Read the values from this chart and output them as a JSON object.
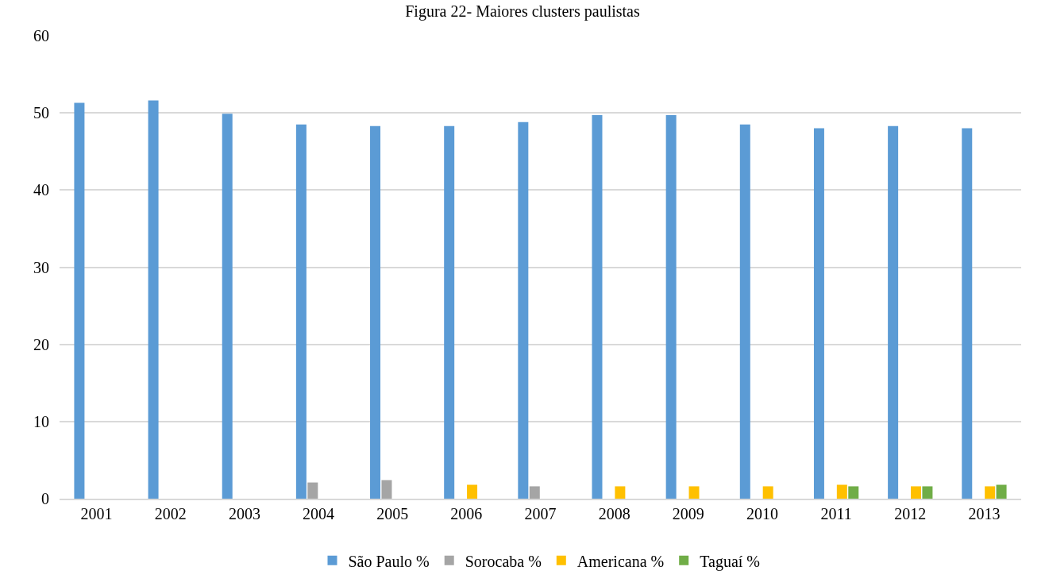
{
  "chart_data": {
    "type": "bar",
    "title": "Figura 22- Maiores clusters paulistas",
    "categories": [
      "2001",
      "2002",
      "2003",
      "2004",
      "2005",
      "2006",
      "2007",
      "2008",
      "2009",
      "2010",
      "2011",
      "2012",
      "2013"
    ],
    "series": [
      {
        "name": "São Paulo %",
        "color": "#5b9bd5",
        "values": [
          51.3,
          51.6,
          49.9,
          48.5,
          48.3,
          48.3,
          48.8,
          49.7,
          49.7,
          48.5,
          48.0,
          48.3,
          48.0
        ]
      },
      {
        "name": "Sorocaba %",
        "color": "#a5a5a5",
        "values": [
          null,
          null,
          null,
          2.1,
          2.4,
          null,
          1.6,
          null,
          null,
          null,
          null,
          null,
          null
        ]
      },
      {
        "name": "Americana %",
        "color": "#ffc000",
        "values": [
          null,
          null,
          null,
          null,
          null,
          1.8,
          null,
          1.6,
          1.6,
          1.6,
          1.8,
          1.6,
          1.6
        ]
      },
      {
        "name": "Taguaí %",
        "color": "#70ad47",
        "values": [
          null,
          null,
          null,
          null,
          null,
          null,
          null,
          null,
          null,
          null,
          1.6,
          1.6,
          1.8
        ]
      }
    ],
    "ylim": [
      0,
      60
    ],
    "yticks": [
      0,
      10,
      20,
      30,
      40,
      50,
      60
    ],
    "grid": "y",
    "legend": "bottom"
  }
}
